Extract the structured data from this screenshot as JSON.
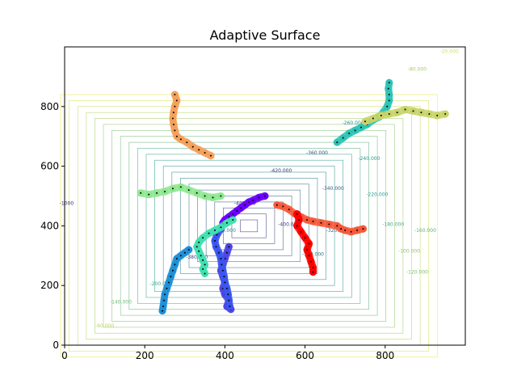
{
  "chart_data": {
    "type": "contour-with-paths",
    "title": "Adaptive Surface",
    "xlabel": "",
    "ylabel": "",
    "xlim": [
      0,
      1000
    ],
    "ylim": [
      0,
      1000
    ],
    "xticks": [
      0,
      200,
      400,
      600,
      800
    ],
    "yticks": [
      0,
      200,
      400,
      600,
      800
    ],
    "grid": false,
    "contour": {
      "center": [
        460,
        400
      ],
      "outer_half_width": 470,
      "outer_half_height": 440,
      "min_level": -440,
      "level_step": 20,
      "n_levels": 22,
      "colormap_low": "#3b2a7a",
      "colormap_mid": "#2a9d8f",
      "colormap_high": "#e6e84a",
      "labels": [
        {
          "text": "-20.000",
          "x": 960,
          "y": 980
        },
        {
          "text": "-60.000",
          "x": 100,
          "y": 60
        },
        {
          "text": "-80.000",
          "x": 880,
          "y": 920
        },
        {
          "text": "-140.000",
          "x": 140,
          "y": 140
        },
        {
          "text": "-120.000",
          "x": 880,
          "y": 240
        },
        {
          "text": "-160.000",
          "x": 900,
          "y": 380
        },
        {
          "text": "-180.000",
          "x": 820,
          "y": 400
        },
        {
          "text": "-200.000",
          "x": 240,
          "y": 200
        },
        {
          "text": "-220.000",
          "x": 780,
          "y": 500
        },
        {
          "text": "-240.000",
          "x": 760,
          "y": 620
        },
        {
          "text": "-260.000",
          "x": 720,
          "y": 740
        },
        {
          "text": "-280.000",
          "x": 400,
          "y": 380
        },
        {
          "text": "-300.000",
          "x": 620,
          "y": 300
        },
        {
          "text": "-320.000",
          "x": 680,
          "y": 380
        },
        {
          "text": "-340.000",
          "x": 670,
          "y": 520
        },
        {
          "text": "-360.000",
          "x": 630,
          "y": 640
        },
        {
          "text": "-380.000",
          "x": 330,
          "y": 290
        },
        {
          "text": "-400.000",
          "x": 560,
          "y": 400
        },
        {
          "text": "-420.000",
          "x": 540,
          "y": 580
        },
        {
          "text": "-440.000",
          "x": 450,
          "y": 470
        },
        {
          "text": "-100.000",
          "x": 860,
          "y": 310
        },
        {
          "text": "-1000",
          "x": 5,
          "y": 470
        }
      ]
    },
    "series": [
      {
        "color": "#6a00ff",
        "points": [
          [
            500,
            500
          ],
          [
            485,
            495
          ],
          [
            470,
            485
          ],
          [
            460,
            480
          ],
          [
            450,
            470
          ],
          [
            440,
            460
          ],
          [
            430,
            450
          ],
          [
            420,
            440
          ],
          [
            410,
            430
          ],
          [
            400,
            420
          ],
          [
            395,
            410
          ]
        ]
      },
      {
        "color": "#4f46e5",
        "points": [
          [
            410,
            330
          ],
          [
            405,
            310
          ],
          [
            400,
            290
          ],
          [
            395,
            270
          ],
          [
            390,
            250
          ],
          [
            395,
            230
          ],
          [
            400,
            210
          ],
          [
            395,
            190
          ],
          [
            400,
            170
          ],
          [
            410,
            150
          ],
          [
            405,
            130
          ],
          [
            415,
            120
          ]
        ]
      },
      {
        "color": "#3b55f0",
        "points": [
          [
            390,
            390
          ],
          [
            380,
            370
          ],
          [
            375,
            350
          ],
          [
            378,
            330
          ],
          [
            385,
            310
          ],
          [
            390,
            290
          ],
          [
            392,
            270
          ],
          [
            395,
            250
          ],
          [
            398,
            230
          ],
          [
            400,
            210
          ],
          [
            405,
            190
          ],
          [
            408,
            170
          ],
          [
            410,
            150
          ],
          [
            412,
            130
          ]
        ]
      },
      {
        "color": "#1e90d8",
        "points": [
          [
            310,
            320
          ],
          [
            300,
            310
          ],
          [
            290,
            300
          ],
          [
            280,
            290
          ],
          [
            275,
            270
          ],
          [
            270,
            250
          ],
          [
            265,
            230
          ],
          [
            260,
            210
          ],
          [
            255,
            190
          ],
          [
            250,
            170
          ],
          [
            248,
            150
          ],
          [
            246,
            130
          ],
          [
            244,
            115
          ]
        ]
      },
      {
        "color": "#2ec4b6",
        "points": [
          [
            680,
            680
          ],
          [
            695,
            695
          ],
          [
            710,
            710
          ],
          [
            725,
            720
          ],
          [
            740,
            730
          ],
          [
            755,
            740
          ],
          [
            770,
            755
          ],
          [
            785,
            765
          ],
          [
            795,
            780
          ],
          [
            805,
            800
          ],
          [
            810,
            820
          ],
          [
            810,
            840
          ],
          [
            808,
            860
          ],
          [
            810,
            880
          ]
        ]
      },
      {
        "color": "#40e0b0",
        "points": [
          [
            420,
            420
          ],
          [
            405,
            410
          ],
          [
            390,
            395
          ],
          [
            375,
            385
          ],
          [
            360,
            375
          ],
          [
            345,
            360
          ],
          [
            335,
            345
          ],
          [
            330,
            330
          ],
          [
            335,
            315
          ],
          [
            340,
            300
          ],
          [
            345,
            285
          ],
          [
            350,
            270
          ],
          [
            345,
            255
          ],
          [
            350,
            240
          ]
        ]
      },
      {
        "color": "#8ee890",
        "points": [
          [
            190,
            510
          ],
          [
            210,
            505
          ],
          [
            230,
            510
          ],
          [
            250,
            515
          ],
          [
            270,
            525
          ],
          [
            290,
            530
          ],
          [
            310,
            520
          ],
          [
            330,
            510
          ],
          [
            350,
            500
          ],
          [
            370,
            495
          ],
          [
            390,
            500
          ]
        ]
      },
      {
        "color": "#c8d46a",
        "points": [
          [
            750,
            750
          ],
          [
            770,
            760
          ],
          [
            790,
            770
          ],
          [
            810,
            775
          ],
          [
            830,
            780
          ],
          [
            850,
            790
          ],
          [
            870,
            785
          ],
          [
            890,
            780
          ],
          [
            910,
            775
          ],
          [
            930,
            770
          ],
          [
            950,
            775
          ]
        ]
      },
      {
        "color": "#f5a05a",
        "points": [
          [
            365,
            635
          ],
          [
            350,
            645
          ],
          [
            335,
            655
          ],
          [
            320,
            665
          ],
          [
            305,
            680
          ],
          [
            290,
            690
          ],
          [
            280,
            700
          ],
          [
            275,
            720
          ],
          [
            272,
            740
          ],
          [
            270,
            760
          ],
          [
            272,
            780
          ],
          [
            275,
            800
          ],
          [
            280,
            820
          ],
          [
            275,
            840
          ]
        ]
      },
      {
        "color": "#f55a3a",
        "points": [
          [
            530,
            470
          ],
          [
            545,
            465
          ],
          [
            560,
            455
          ],
          [
            575,
            440
          ],
          [
            590,
            430
          ],
          [
            605,
            420
          ],
          [
            620,
            415
          ],
          [
            640,
            410
          ],
          [
            660,
            405
          ],
          [
            680,
            400
          ],
          [
            690,
            390
          ],
          [
            700,
            385
          ],
          [
            715,
            380
          ],
          [
            730,
            385
          ],
          [
            745,
            390
          ]
        ]
      },
      {
        "color": "#ff0000",
        "points": [
          [
            580,
            440
          ],
          [
            585,
            420
          ],
          [
            580,
            400
          ],
          [
            590,
            380
          ],
          [
            600,
            360
          ],
          [
            610,
            340
          ],
          [
            605,
            320
          ],
          [
            610,
            300
          ],
          [
            615,
            280
          ],
          [
            620,
            260
          ],
          [
            620,
            245
          ]
        ]
      }
    ]
  }
}
